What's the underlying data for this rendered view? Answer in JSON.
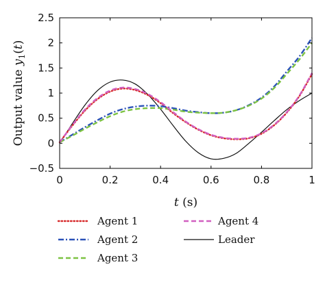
{
  "chart_data": {
    "type": "line",
    "xlabel": {
      "var": "t",
      "unit": "(s)"
    },
    "ylabel": {
      "prefix": "Output value ",
      "var": "y",
      "sub": "1",
      "arg_open": "(",
      "arg_var": "t",
      "arg_close": ")"
    },
    "xlim": [
      0,
      1
    ],
    "ylim": [
      -0.5,
      2.5
    ],
    "xticks": [
      0,
      0.2,
      0.4,
      0.6,
      0.8,
      1
    ],
    "xtick_labels": [
      "0",
      "0.2",
      "0.4",
      "0.6",
      "0.8",
      "1"
    ],
    "yticks": [
      -0.5,
      0,
      0.5,
      1,
      1.5,
      2,
      2.5
    ],
    "ytick_labels": [
      "−0.5",
      "0",
      "0.5",
      "1",
      "1.5",
      "2",
      "2.5"
    ],
    "grid": false,
    "legend_position": "below",
    "x": [
      0,
      0.05,
      0.1,
      0.15,
      0.2,
      0.25,
      0.3,
      0.35,
      0.4,
      0.45,
      0.5,
      0.55,
      0.6,
      0.65,
      0.7,
      0.75,
      0.8,
      0.85,
      0.9,
      0.95,
      1.0
    ],
    "series": [
      {
        "name": "Agent 1",
        "color": "#d62728",
        "dash": "dotted",
        "values": [
          0.02,
          0.35,
          0.65,
          0.88,
          1.03,
          1.09,
          1.06,
          0.96,
          0.8,
          0.6,
          0.42,
          0.27,
          0.16,
          0.1,
          0.08,
          0.1,
          0.19,
          0.36,
          0.61,
          0.94,
          1.38
        ]
      },
      {
        "name": "Agent 2",
        "color": "#2b52b8",
        "dash": "dashdot",
        "values": [
          0.02,
          0.17,
          0.32,
          0.46,
          0.59,
          0.68,
          0.73,
          0.75,
          0.74,
          0.7,
          0.65,
          0.62,
          0.6,
          0.61,
          0.66,
          0.76,
          0.91,
          1.13,
          1.43,
          1.73,
          2.1
        ]
      },
      {
        "name": "Agent 3",
        "color": "#7cc242",
        "dash": "dashed",
        "values": [
          0.02,
          0.15,
          0.29,
          0.42,
          0.54,
          0.63,
          0.68,
          0.7,
          0.7,
          0.67,
          0.63,
          0.61,
          0.6,
          0.61,
          0.66,
          0.75,
          0.89,
          1.1,
          1.38,
          1.67,
          2.0
        ]
      },
      {
        "name": "Agent 4",
        "color": "#d15fc0",
        "dash": "dashed",
        "values": [
          0.02,
          0.36,
          0.67,
          0.9,
          1.05,
          1.11,
          1.08,
          0.98,
          0.82,
          0.62,
          0.43,
          0.28,
          0.17,
          0.11,
          0.09,
          0.11,
          0.2,
          0.37,
          0.62,
          0.95,
          1.4
        ]
      },
      {
        "name": "Leader",
        "color": "#111111",
        "dash": "solid",
        "values": [
          0.0,
          0.39,
          0.76,
          1.05,
          1.22,
          1.26,
          1.18,
          0.97,
          0.68,
          0.35,
          0.04,
          -0.19,
          -0.31,
          -0.3,
          -0.2,
          0.0,
          0.22,
          0.45,
          0.67,
          0.85,
          1.0
        ]
      }
    ]
  }
}
